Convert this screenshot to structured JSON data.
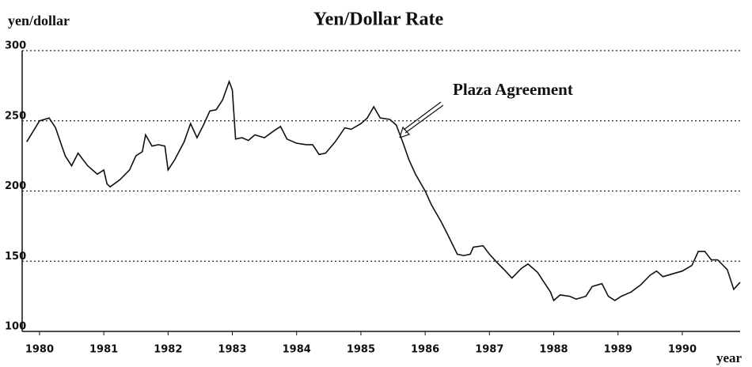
{
  "chart_data": {
    "type": "line",
    "title": "Yen/Dollar Rate",
    "ylabel": "yen/dollar",
    "xlabel": "year",
    "annotation": "Plaza Agreement",
    "color": "#111111",
    "x": [
      1979.8,
      1980.0,
      1980.15,
      1980.25,
      1980.4,
      1980.5,
      1980.6,
      1980.75,
      1980.9,
      1981.0,
      1981.05,
      1981.1,
      1981.25,
      1981.4,
      1981.5,
      1981.6,
      1981.65,
      1981.75,
      1981.85,
      1981.95,
      1982.0,
      1982.1,
      1982.25,
      1982.35,
      1982.45,
      1982.55,
      1982.65,
      1982.75,
      1982.85,
      1982.95,
      1983.0,
      1983.05,
      1983.15,
      1983.25,
      1983.35,
      1983.5,
      1983.65,
      1983.75,
      1983.85,
      1984.0,
      1984.15,
      1984.25,
      1984.35,
      1984.45,
      1984.6,
      1984.75,
      1984.85,
      1985.0,
      1985.1,
      1985.2,
      1985.3,
      1985.45,
      1985.55,
      1985.65,
      1985.75,
      1985.85,
      1986.0,
      1986.1,
      1986.25,
      1986.35,
      1986.5,
      1986.6,
      1986.7,
      1986.75,
      1986.9,
      1987.0,
      1987.1,
      1987.25,
      1987.35,
      1987.5,
      1987.6,
      1987.75,
      1987.85,
      1987.95,
      1988.0,
      1988.1,
      1988.25,
      1988.35,
      1988.5,
      1988.6,
      1988.75,
      1988.85,
      1988.95,
      1989.05,
      1989.2,
      1989.35,
      1989.5,
      1989.6,
      1989.7,
      1989.85,
      1990.0,
      1990.15,
      1990.25,
      1990.35,
      1990.45,
      1990.55,
      1990.7,
      1990.8,
      1990.9
    ],
    "values": [
      235,
      250,
      252,
      245,
      225,
      218,
      227,
      218,
      212,
      215,
      205,
      203,
      208,
      215,
      225,
      228,
      240,
      232,
      233,
      232,
      215,
      222,
      235,
      248,
      238,
      247,
      257,
      258,
      265,
      278,
      272,
      237,
      238,
      236,
      240,
      238,
      243,
      246,
      237,
      234,
      233,
      233,
      226,
      227,
      235,
      245,
      244,
      248,
      252,
      260,
      252,
      251,
      247,
      235,
      222,
      212,
      200,
      190,
      178,
      169,
      155,
      154,
      155,
      160,
      161,
      155,
      150,
      143,
      138,
      145,
      148,
      142,
      135,
      128,
      122,
      126,
      125,
      123,
      125,
      132,
      134,
      125,
      122,
      125,
      128,
      133,
      140,
      143,
      139,
      141,
      143,
      147,
      157,
      157,
      151,
      151,
      144,
      130,
      135
    ],
    "xlim": [
      1979.73,
      1990.9
    ],
    "xticks": [
      1980,
      1981,
      1982,
      1983,
      1984,
      1985,
      1986,
      1987,
      1988,
      1989,
      1990
    ],
    "ylim": [
      100,
      300
    ],
    "yticks": [
      100,
      150,
      200,
      250,
      300
    ],
    "grid": true
  }
}
